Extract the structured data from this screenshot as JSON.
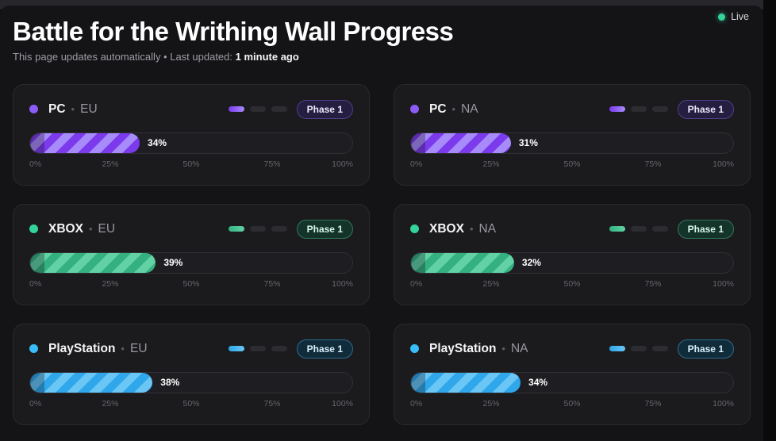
{
  "page": {
    "title": "Battle for the Writhing Wall Progress",
    "subtitle_prefix": "This page updates automatically • Last updated:",
    "last_updated": "1 minute ago",
    "live_label": "Live"
  },
  "separator": "•",
  "ticks": [
    "0%",
    "25%",
    "50%",
    "75%",
    "100%"
  ],
  "colors": {
    "live_dot": "#34d399",
    "themes": {
      "purple": {
        "accent": "#8b5cf6",
        "stripe_dark": "#7c3aed",
        "stripe_light": "#a78bfa",
        "badge_bg": "#251e41",
        "badge_border": "#503e8c",
        "badge_text": "#eeeafc"
      },
      "green": {
        "accent": "#34d399",
        "stripe_dark": "#35b181",
        "stripe_light": "#62d2a5",
        "badge_bg": "#14342a",
        "badge_border": "#31775a",
        "badge_text": "#d8f6e9"
      },
      "blue": {
        "accent": "#38bdf8",
        "stripe_dark": "#2fa7ea",
        "stripe_light": "#6ac6f5",
        "badge_bg": "#102b3a",
        "badge_border": "#2f6b90",
        "badge_text": "#d9f0fc"
      }
    }
  },
  "cards": [
    {
      "platform": "PC",
      "region": "EU",
      "percent": 34,
      "percent_label": "34%",
      "phase_label": "Phase 1",
      "theme": "purple",
      "phases_total": 3,
      "phase_active": 1
    },
    {
      "platform": "PC",
      "region": "NA",
      "percent": 31,
      "percent_label": "31%",
      "phase_label": "Phase 1",
      "theme": "purple",
      "phases_total": 3,
      "phase_active": 1
    },
    {
      "platform": "XBOX",
      "region": "EU",
      "percent": 39,
      "percent_label": "39%",
      "phase_label": "Phase 1",
      "theme": "green",
      "phases_total": 3,
      "phase_active": 1
    },
    {
      "platform": "XBOX",
      "region": "NA",
      "percent": 32,
      "percent_label": "32%",
      "phase_label": "Phase 1",
      "theme": "green",
      "phases_total": 3,
      "phase_active": 1
    },
    {
      "platform": "PlayStation",
      "region": "EU",
      "percent": 38,
      "percent_label": "38%",
      "phase_label": "Phase 1",
      "theme": "blue",
      "phases_total": 3,
      "phase_active": 1
    },
    {
      "platform": "PlayStation",
      "region": "NA",
      "percent": 34,
      "percent_label": "34%",
      "phase_label": "Phase 1",
      "theme": "blue",
      "phases_total": 3,
      "phase_active": 1
    }
  ]
}
